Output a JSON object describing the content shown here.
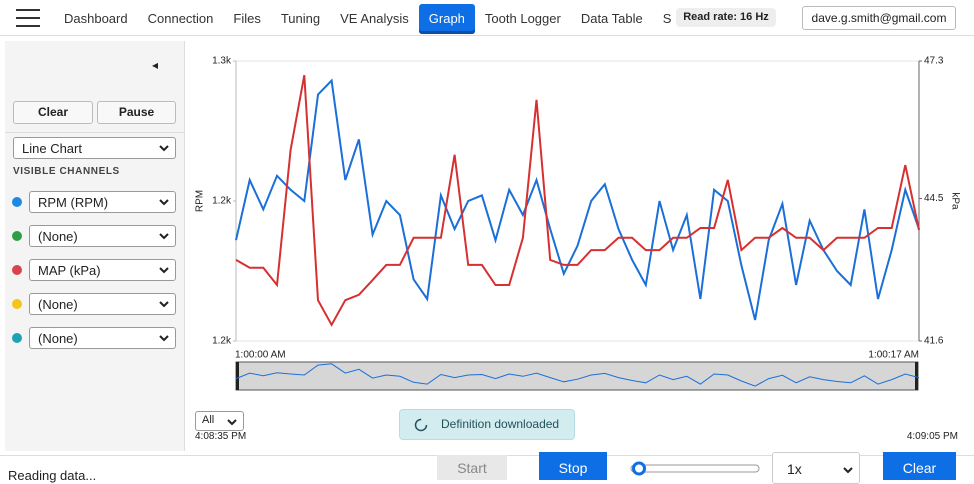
{
  "nav": {
    "tabs": [
      "Dashboard",
      "Connection",
      "Files",
      "Tuning",
      "VE Analysis",
      "Graph",
      "Tooth Logger",
      "Data Table",
      "Settings"
    ],
    "active_tab": 5,
    "read_rate": "Read rate: 16 Hz",
    "user_email": "dave.g.smith@gmail.com"
  },
  "sidebar": {
    "collapse_icon": "◂",
    "buttons": [
      "Clear",
      "Pause"
    ],
    "chart_type": "Line Chart",
    "channels_heading": "VISIBLE CHANNELS",
    "channels": [
      {
        "label": "RPM (RPM)",
        "color": "#1e88e5"
      },
      {
        "label": "(None)",
        "color": "#2e9e44"
      },
      {
        "label": "MAP (kPa)",
        "color": "#d9434e"
      },
      {
        "label": "(None)",
        "color": "#f5c518"
      },
      {
        "label": "(None)",
        "color": "#1aa3b5"
      }
    ]
  },
  "chart_data": {
    "type": "line",
    "y_label": "RPM",
    "y2_label": "kPa",
    "ylim": [
      1150,
      1250
    ],
    "yticks": [
      {
        "value": 1150,
        "label": "1.2k"
      },
      {
        "value": 1200,
        "label": "1.2k"
      },
      {
        "value": 1250,
        "label": "1.3k"
      }
    ],
    "y2lim": [
      41.6,
      47.3
    ],
    "y2ticks": [
      41.6,
      44.5,
      47.3
    ],
    "x_start_label": "1:00:00 AM",
    "x_end_label": "1:00:17 AM",
    "series": [
      {
        "name": "RPM",
        "color": "#1a6fd8",
        "values": [
          1186,
          1207.5,
          1197,
          1209,
          1204,
          1200,
          1238,
          1243,
          1207.5,
          1222,
          1188,
          1200,
          1195,
          1172,
          1165,
          1202,
          1190,
          1200,
          1202,
          1186,
          1204,
          1195,
          1207.5,
          1190,
          1174,
          1184,
          1200,
          1206,
          1190,
          1179,
          1170,
          1200,
          1182.5,
          1195,
          1165,
          1204,
          1200,
          1177,
          1157.5,
          1186,
          1199,
          1170,
          1193,
          1182.5,
          1175,
          1170,
          1197,
          1165,
          1182.5,
          1204,
          1190
        ]
      },
      {
        "name": "MAP",
        "color": "#d63030",
        "axis": "y2",
        "values": [
          43.25,
          43.09,
          43.09,
          42.74,
          45.49,
          47.01,
          42.43,
          41.93,
          42.43,
          42.54,
          42.84,
          43.15,
          43.15,
          43.7,
          43.7,
          43.7,
          45.39,
          43.15,
          43.15,
          42.74,
          42.74,
          43.7,
          46.51,
          43.25,
          43.15,
          43.15,
          43.45,
          43.45,
          43.7,
          43.7,
          43.45,
          43.45,
          43.7,
          43.7,
          43.9,
          43.9,
          44.88,
          43.45,
          43.7,
          43.7,
          43.9,
          43.7,
          43.7,
          43.45,
          43.7,
          43.7,
          43.7,
          43.9,
          43.9,
          45.18,
          43.86
        ]
      }
    ]
  },
  "range_select": "All",
  "window_start": "4:08:35 PM",
  "window_end": "4:09:05 PM",
  "toast": "Definition downloaded",
  "footer": {
    "status": "Reading data...",
    "start": "Start",
    "stop": "Stop",
    "speed": "1x",
    "clear": "Clear"
  }
}
